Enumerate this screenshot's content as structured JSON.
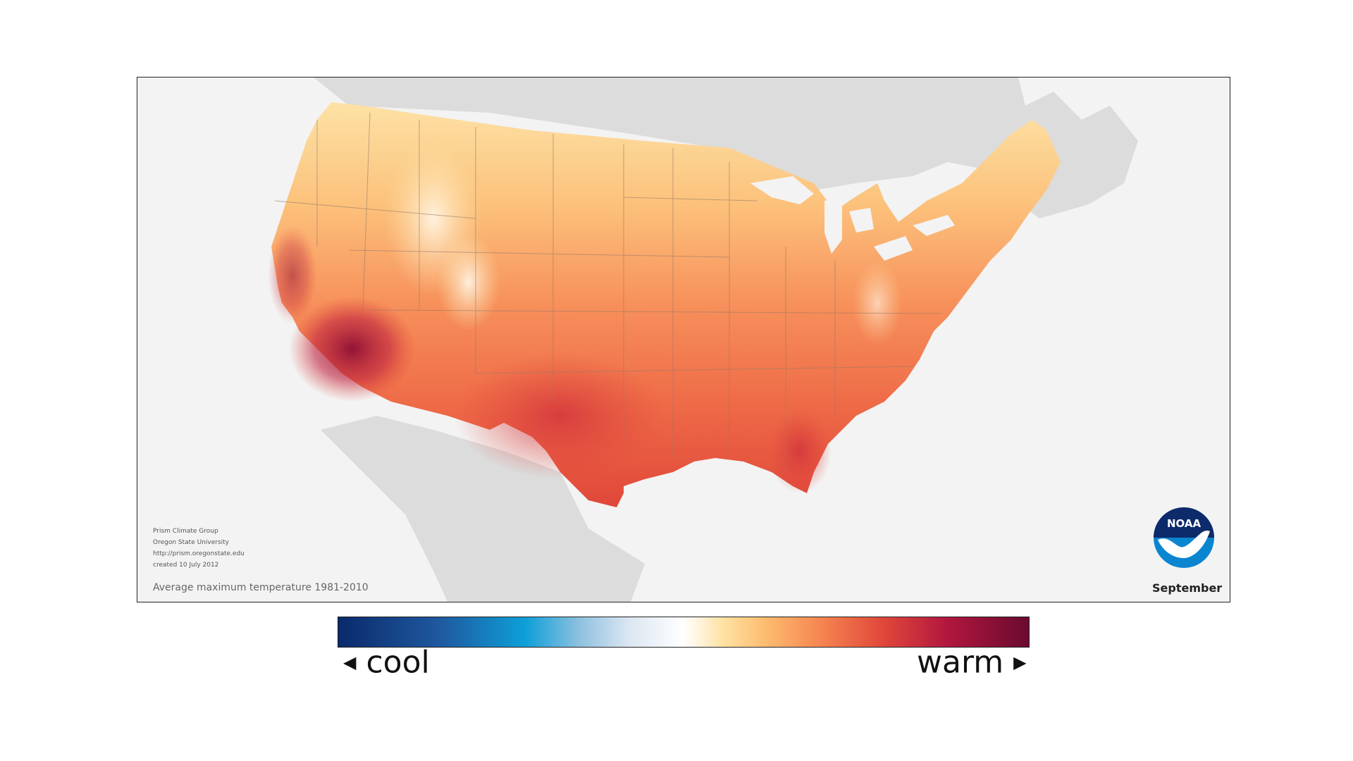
{
  "map": {
    "credits": {
      "line1": "Prism Climate Group",
      "line2": "Oregon State University",
      "line3": "http://prism.oregonstate.edu",
      "line4": "created 10 July 2012"
    },
    "caption": "Average maximum temperature 1981-2010",
    "month": "September",
    "logo_text": "NOAA"
  },
  "legend": {
    "low_label": "cool",
    "high_label": "warm",
    "colors": [
      "#0a2a6c",
      "#1f5aa0",
      "#0d9fd8",
      "#8fc1df",
      "#dbe6f2",
      "#ffffff",
      "#ffe0a0",
      "#fdbb6f",
      "#f68451",
      "#e0473a",
      "#b3173f",
      "#6a0a2f"
    ]
  },
  "colors": {
    "land_background": "#dcdcdc",
    "ocean": "#f3f3f3",
    "state_border": "#9a7a66"
  }
}
